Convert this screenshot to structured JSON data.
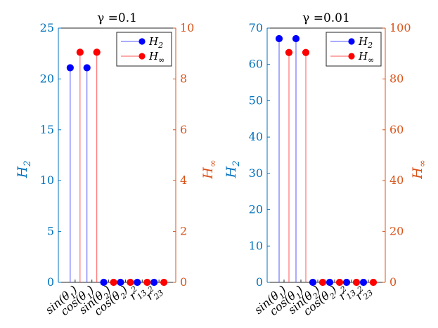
{
  "chart_data": [
    {
      "type": "stem",
      "title": "γ =0.1",
      "categories": [
        "sin(θ1)",
        "cos(θ1)",
        "sin(θ2)",
        "cos(θ2)",
        "r²13",
        "r²23"
      ],
      "category_labels": [
        {
          "base": "sin(θ",
          "sub": "1",
          "close": ")"
        },
        {
          "base": "cos(θ",
          "sub": "1",
          "close": ")"
        },
        {
          "base": "sin(θ",
          "sub": "2",
          "close": ")"
        },
        {
          "base": "cos(θ",
          "sub": "2",
          "close": ")"
        },
        {
          "base": "r",
          "sup": "2",
          "sub": "13"
        },
        {
          "base": "r",
          "sup": "2",
          "sub": "23"
        }
      ],
      "left_axis": {
        "label": "H2",
        "label_base": "H",
        "label_sub": "2",
        "ylim": [
          0,
          25
        ],
        "ticks": [
          "0",
          "5",
          "10",
          "15",
          "20",
          "25"
        ],
        "color": "#0072BD"
      },
      "right_axis": {
        "label": "H∞",
        "label_base": "H",
        "label_sub": "∞",
        "ylim": [
          0,
          10
        ],
        "ticks": [
          "0",
          "2",
          "4",
          "6",
          "8",
          "10"
        ],
        "color": "#D95319"
      },
      "series": [
        {
          "name": "H2",
          "legend_base": "H",
          "legend_sub": "2",
          "axis": "left",
          "color": "#0000FF",
          "line_color": "#5555FF",
          "values": [
            21.1,
            21.1,
            0,
            0,
            0,
            0
          ]
        },
        {
          "name": "H∞",
          "legend_base": "H",
          "legend_sub": "∞",
          "axis": "right",
          "color": "#FF0000",
          "line_color": "#FF5555",
          "values": [
            9.05,
            9.05,
            0,
            0,
            0,
            0
          ]
        }
      ],
      "legend_position": "top-right"
    },
    {
      "type": "stem",
      "title": "γ =0.01",
      "categories": [
        "sin(θ1)",
        "cos(θ1)",
        "sin(θ2)",
        "cos(θ2)",
        "r²13",
        "r²23"
      ],
      "category_labels": [
        {
          "base": "sin(θ",
          "sub": "1",
          "close": ")"
        },
        {
          "base": "cos(θ",
          "sub": "1",
          "close": ")"
        },
        {
          "base": "sin(θ",
          "sub": "2",
          "close": ")"
        },
        {
          "base": "cos(θ",
          "sub": "2",
          "close": ")"
        },
        {
          "base": "r",
          "sup": "2",
          "sub": "13"
        },
        {
          "base": "r",
          "sup": "2",
          "sub": "23"
        }
      ],
      "left_axis": {
        "label": "H2",
        "label_base": "H",
        "label_sub": "2",
        "ylim": [
          0,
          70
        ],
        "ticks": [
          "0",
          "10",
          "20",
          "30",
          "40",
          "50",
          "60",
          "70"
        ],
        "color": "#0072BD"
      },
      "right_axis": {
        "label": "H∞",
        "label_base": "H",
        "label_sub": "∞",
        "ylim": [
          0,
          100
        ],
        "ticks": [
          "0",
          "20",
          "40",
          "60",
          "80",
          "100"
        ],
        "color": "#D95319"
      },
      "series": [
        {
          "name": "H2",
          "legend_base": "H",
          "legend_sub": "2",
          "axis": "left",
          "color": "#0000FF",
          "line_color": "#5555FF",
          "values": [
            67.1,
            67.1,
            0,
            0,
            0,
            0
          ]
        },
        {
          "name": "H∞",
          "legend_base": "H",
          "legend_sub": "∞",
          "axis": "right",
          "color": "#FF0000",
          "line_color": "#FF5555",
          "values": [
            90.4,
            90.4,
            0,
            0,
            0,
            0
          ]
        }
      ],
      "legend_position": "top-right"
    }
  ]
}
